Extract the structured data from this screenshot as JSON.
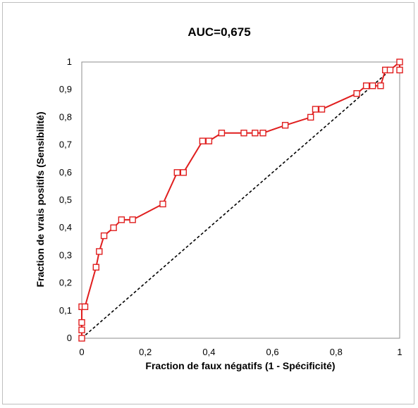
{
  "chart_data": {
    "type": "line",
    "title": "AUC=0,675",
    "xlabel": "Fraction de faux négatifs (1 - Spécificité)",
    "ylabel": "Fraction de vrais positifs (Sensibilité)",
    "xlim": [
      0,
      1
    ],
    "ylim": [
      0,
      1
    ],
    "x_ticks": [
      "0",
      "0,2",
      "0,4",
      "0,6",
      "0,8",
      "1"
    ],
    "y_ticks": [
      "0",
      "0,1",
      "0,2",
      "0,3",
      "0,4",
      "0,5",
      "0,6",
      "0,7",
      "0,8",
      "0,9",
      "1"
    ],
    "grid": false,
    "legend": "none",
    "series": [
      {
        "color": "#e01e1e",
        "marker": "square",
        "x": [
          0,
          0,
          0,
          0,
          0.01,
          0.045,
          0.055,
          0.07,
          0.1,
          0.125,
          0.16,
          0.255,
          0.3,
          0.32,
          0.38,
          0.4,
          0.44,
          0.51,
          0.545,
          0.57,
          0.64,
          0.72,
          0.735,
          0.755,
          0.865,
          0.895,
          0.915,
          0.94,
          0.955,
          0.97,
          1,
          1
        ],
        "y": [
          0,
          0.03,
          0.057,
          0.114,
          0.114,
          0.257,
          0.314,
          0.371,
          0.4,
          0.429,
          0.429,
          0.486,
          0.6,
          0.6,
          0.714,
          0.714,
          0.743,
          0.743,
          0.743,
          0.743,
          0.771,
          0.8,
          0.829,
          0.829,
          0.886,
          0.914,
          0.914,
          0.914,
          0.971,
          0.971,
          1,
          0.971
        ]
      },
      {
        "color": "#000000",
        "style": "dashed",
        "x": [
          0,
          1
        ],
        "y": [
          0,
          1
        ]
      }
    ]
  }
}
